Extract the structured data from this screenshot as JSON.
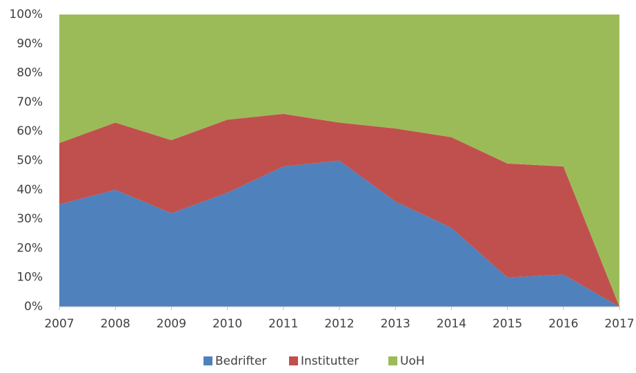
{
  "chart_data": {
    "type": "stacked_area_100",
    "categories": [
      "2007",
      "2008",
      "2009",
      "2010",
      "2011",
      "2012",
      "2013",
      "2014",
      "2015",
      "2016",
      "2017"
    ],
    "series": [
      {
        "name": "Bedrifter",
        "color": "#4f81bd",
        "values": [
          35,
          40,
          32,
          39,
          48,
          50,
          36,
          27,
          10,
          11,
          0
        ]
      },
      {
        "name": "Institutter",
        "color": "#c0504d",
        "values": [
          21,
          23,
          25,
          25,
          18,
          13,
          25,
          31,
          39,
          37,
          0
        ]
      },
      {
        "name": "UoH",
        "color": "#9bbb59",
        "values": [
          44,
          37,
          43,
          36,
          34,
          37,
          39,
          42,
          51,
          52,
          100
        ]
      }
    ],
    "ylim": [
      0,
      100
    ],
    "yticks": [
      {
        "value": 0,
        "label": "0%"
      },
      {
        "value": 10,
        "label": "10%"
      },
      {
        "value": 20,
        "label": "20%"
      },
      {
        "value": 30,
        "label": "30%"
      },
      {
        "value": 40,
        "label": "40%"
      },
      {
        "value": 50,
        "label": "50%"
      },
      {
        "value": 60,
        "label": "60%"
      },
      {
        "value": 70,
        "label": "70%"
      },
      {
        "value": 80,
        "label": "80%"
      },
      {
        "value": 90,
        "label": "90%"
      },
      {
        "value": 100,
        "label": "100%"
      }
    ],
    "legend": "bottom",
    "grid": false
  }
}
